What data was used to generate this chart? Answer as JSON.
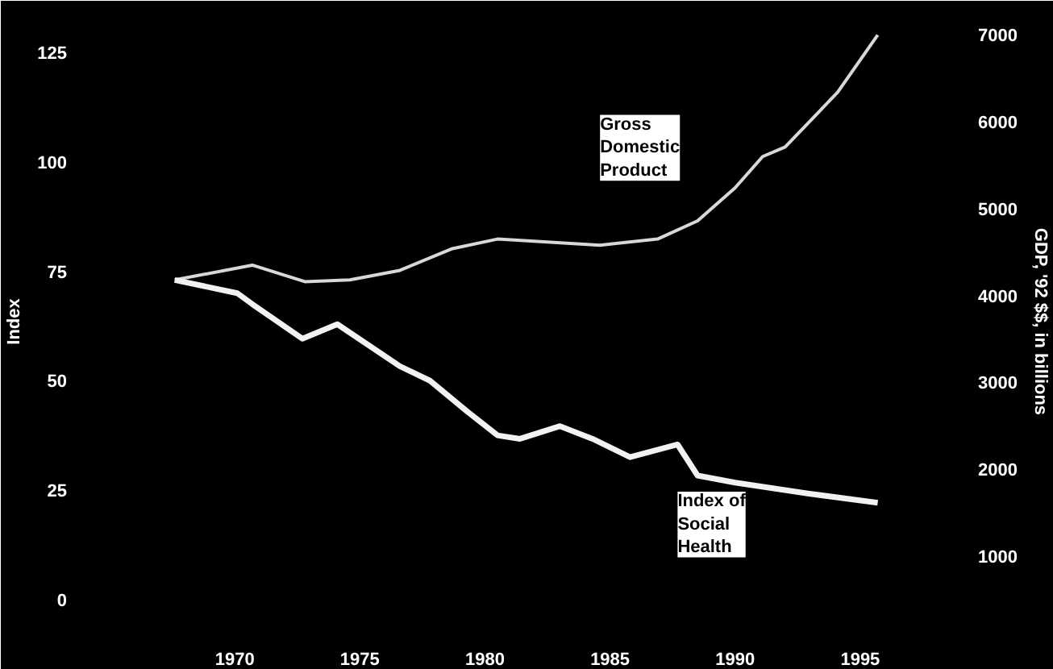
{
  "chart_data": {
    "type": "line",
    "ylabel": "Index",
    "y2label": "GDP, '92 $$, in billions",
    "series": [
      {
        "name": "Gross Domestic Product",
        "color": "#d8d8d8",
        "axis": "y2",
        "x": [
          1967.6,
          1970.7,
          1972.8,
          1974.6,
          1976.6,
          1978.7,
          1980.5,
          1981.7,
          1984.6,
          1986.9,
          1988.5,
          1990.0,
          1991.1,
          1992.0,
          1994.1,
          1995.7
        ],
        "values": [
          4180,
          4350,
          4160,
          4180,
          4290,
          4540,
          4650,
          4630,
          4580,
          4650,
          4860,
          5240,
          5600,
          5710,
          6340,
          7000
        ]
      },
      {
        "name": "Index of Social Health",
        "color": "#f2f2f2",
        "x": [
          1967.6,
          1970.1,
          1970.7,
          1972.7,
          1974.1,
          1976.6,
          1977.8,
          1979.3,
          1980.5,
          1981.4,
          1983.0,
          1984.3,
          1985.8,
          1987.7,
          1988.5,
          1990.0,
          1992.9,
          1995.7
        ],
        "values": [
          73,
          70,
          67.5,
          59.6,
          62.9,
          53.3,
          50,
          42.9,
          37.5,
          36.7,
          39.6,
          36.7,
          32.5,
          35.4,
          28.3,
          26.7,
          24.2,
          22.1
        ]
      }
    ],
    "xlim": [
      1964,
      1999
    ],
    "xticks": [
      1970,
      1975,
      1980,
      1985,
      1990,
      1995
    ],
    "ylim": [
      -8,
      135
    ],
    "yticks": [
      0,
      25,
      50,
      75,
      100,
      125
    ],
    "y2lim": [
      100,
      7300
    ],
    "y2ticks": [
      1000,
      2000,
      3000,
      4000,
      5000,
      6000,
      7000
    ],
    "grid": false
  }
}
